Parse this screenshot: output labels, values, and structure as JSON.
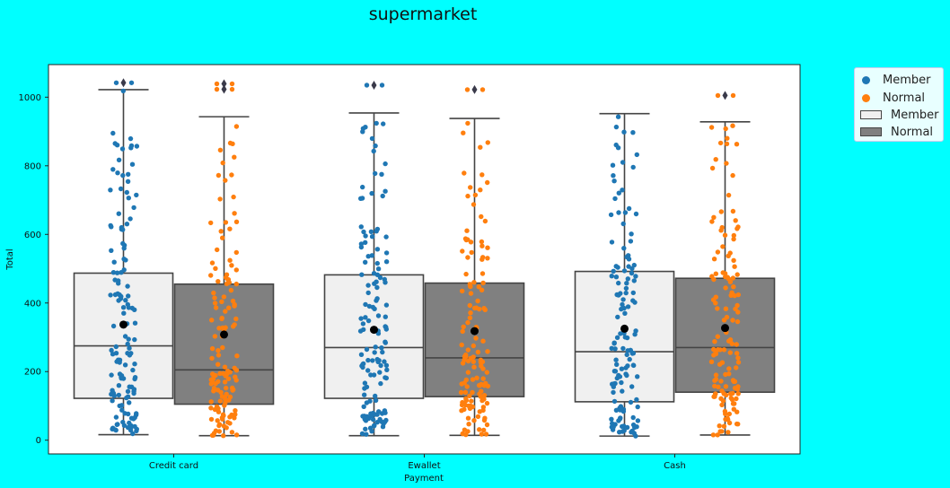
{
  "chart_data": {
    "type": "box+strip",
    "title": "supermarket",
    "xlabel": "Payment",
    "ylabel": "Total",
    "ylim": [
      -40,
      1095
    ],
    "yticks": [
      0,
      200,
      400,
      600,
      800,
      1000
    ],
    "categories": [
      "Credit card",
      "Ewallet",
      "Cash"
    ],
    "hue": [
      "Member",
      "Normal"
    ],
    "colors": {
      "strip": {
        "Member": "#1f77b4",
        "Normal": "#ff7f0e"
      },
      "box": {
        "Member": "#f0f0f0",
        "Normal": "#808080"
      },
      "background": "#00ffff",
      "plot_bg": "#ffffff"
    },
    "boxes": [
      {
        "category": "Credit card",
        "hue": "Member",
        "whisker_low": 16,
        "q1": 122,
        "median": 275,
        "q3": 487,
        "whisker_high": 1022,
        "mean": 337,
        "outliers": [
          1042
        ]
      },
      {
        "category": "Credit card",
        "hue": "Normal",
        "whisker_low": 13,
        "q1": 105,
        "median": 205,
        "q3": 455,
        "whisker_high": 943,
        "mean": 308,
        "outliers": [
          1023,
          1039
        ]
      },
      {
        "category": "Ewallet",
        "hue": "Member",
        "whisker_low": 13,
        "q1": 122,
        "median": 270,
        "q3": 482,
        "whisker_high": 954,
        "mean": 322,
        "outliers": [
          1035
        ]
      },
      {
        "category": "Ewallet",
        "hue": "Normal",
        "whisker_low": 14,
        "q1": 127,
        "median": 240,
        "q3": 458,
        "whisker_high": 938,
        "mean": 318,
        "outliers": [
          1022
        ]
      },
      {
        "category": "Cash",
        "hue": "Member",
        "whisker_low": 12,
        "q1": 112,
        "median": 258,
        "q3": 492,
        "whisker_high": 952,
        "mean": 325,
        "outliers": []
      },
      {
        "category": "Cash",
        "hue": "Normal",
        "whisker_low": 15,
        "q1": 140,
        "median": 270,
        "q3": 472,
        "whisker_high": 928,
        "mean": 327,
        "outliers": [
          1005
        ]
      }
    ],
    "legend": {
      "position": "outside-right-top",
      "entries": [
        {
          "label": "Member",
          "kind": "point",
          "color": "#1f77b4"
        },
        {
          "label": "Normal",
          "kind": "point",
          "color": "#ff7f0e"
        },
        {
          "label": "Member",
          "kind": "box",
          "color": "#f0f0f0"
        },
        {
          "label": "Normal",
          "kind": "box",
          "color": "#808080"
        }
      ]
    }
  }
}
